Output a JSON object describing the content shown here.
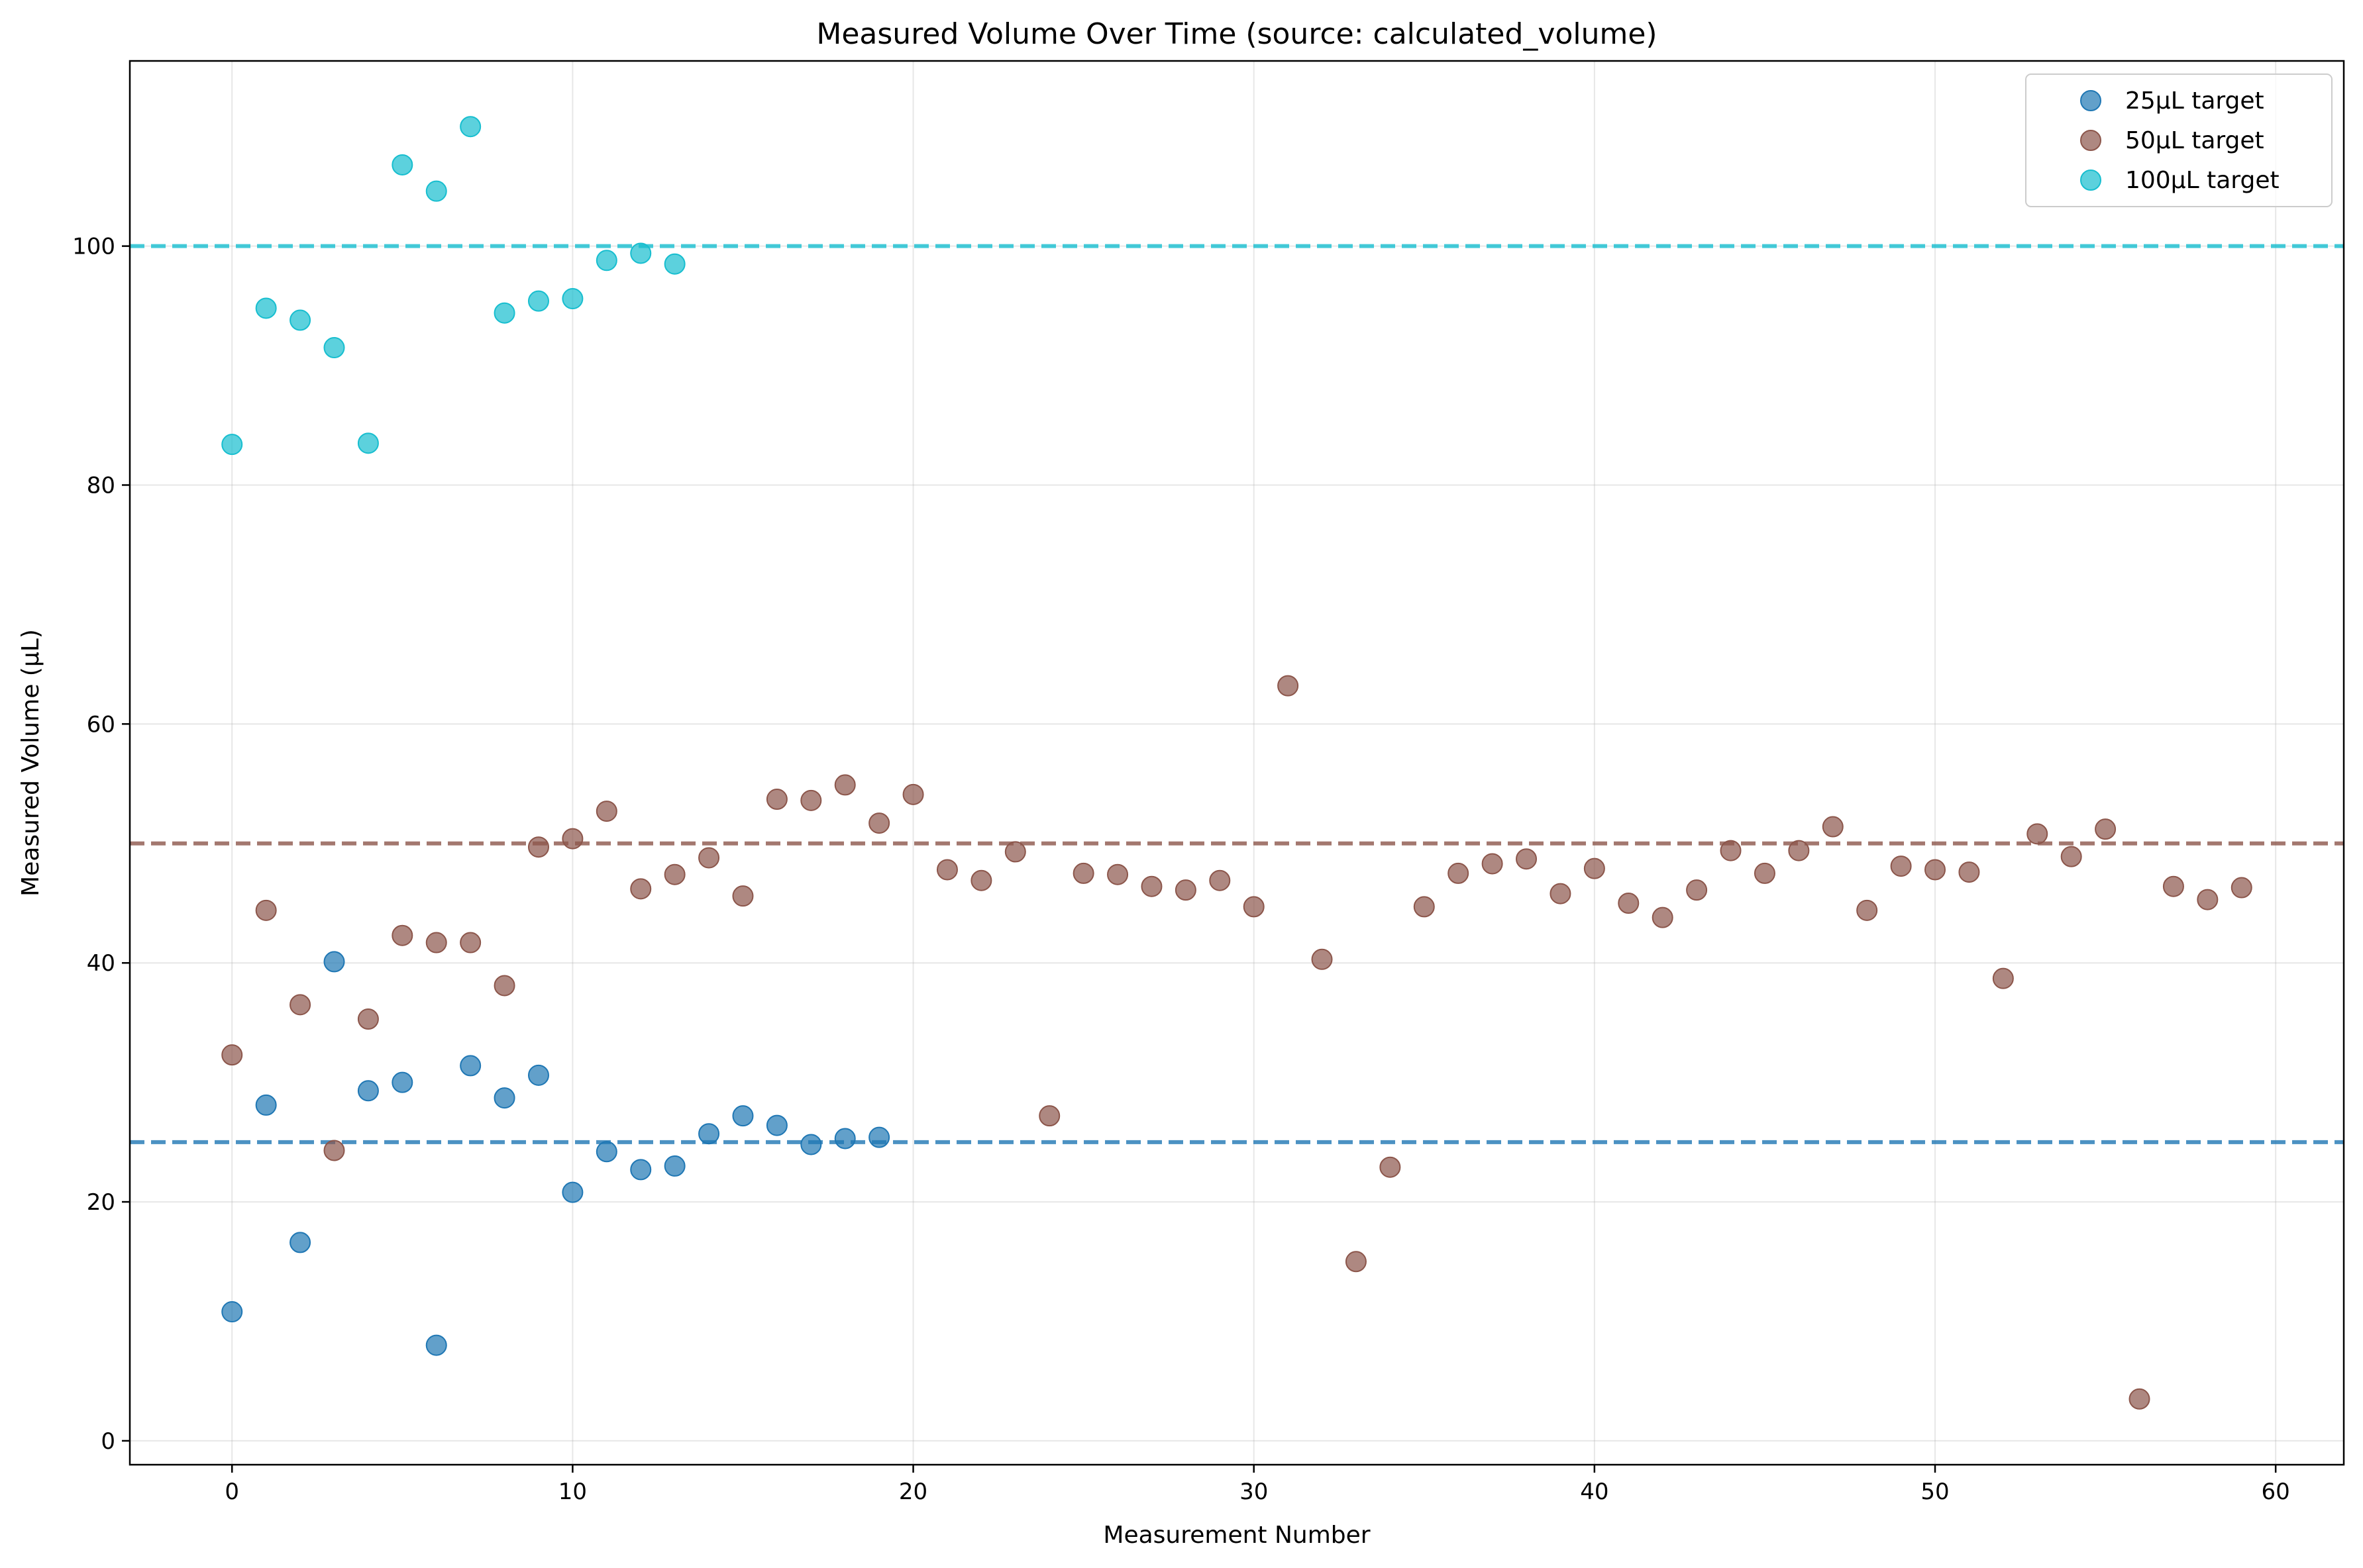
{
  "chart_data": {
    "type": "scatter",
    "title": "Measured Volume Over Time (source: calculated_volume)",
    "xlabel": "Measurement Number",
    "ylabel": "Measured Volume (µL)",
    "xlim": [
      -3,
      62
    ],
    "ylim": [
      -2,
      115.5
    ],
    "xticks": [
      0,
      10,
      20,
      30,
      40,
      50,
      60
    ],
    "yticks": [
      0,
      20,
      40,
      60,
      80,
      100
    ],
    "grid": true,
    "legend_position": "upper right",
    "series": [
      {
        "name": "25µL target",
        "color": "#1f77b4",
        "target": 25,
        "x": [
          0,
          1,
          2,
          3,
          4,
          5,
          6,
          7,
          8,
          9,
          10,
          11,
          12,
          13,
          14,
          15,
          16,
          17,
          18,
          19
        ],
        "y": [
          10.8,
          28.1,
          16.6,
          40.1,
          29.3,
          30.0,
          8.0,
          31.4,
          28.7,
          30.6,
          20.8,
          24.2,
          22.7,
          23.0,
          25.7,
          27.2,
          26.4,
          24.8,
          25.3,
          25.4
        ]
      },
      {
        "name": "50µL target",
        "color": "#8c564b",
        "target": 50,
        "x": [
          0,
          1,
          2,
          3,
          4,
          5,
          6,
          7,
          8,
          9,
          10,
          11,
          12,
          13,
          14,
          15,
          16,
          17,
          18,
          19,
          20,
          21,
          22,
          23,
          24,
          25,
          26,
          27,
          28,
          29,
          30,
          31,
          32,
          33,
          34,
          35,
          36,
          37,
          38,
          39,
          40,
          41,
          42,
          43,
          44,
          45,
          46,
          47,
          48,
          49,
          50,
          51,
          52,
          53,
          54,
          55,
          56,
          57,
          58,
          59
        ],
        "y": [
          32.3,
          44.4,
          36.5,
          24.3,
          35.3,
          42.3,
          41.7,
          41.7,
          38.1,
          49.7,
          50.4,
          52.7,
          46.2,
          47.4,
          48.8,
          45.6,
          53.7,
          53.6,
          54.9,
          51.7,
          54.1,
          47.8,
          46.9,
          49.3,
          27.2,
          47.5,
          47.4,
          46.4,
          46.1,
          46.9,
          44.7,
          63.2,
          40.3,
          15.0,
          22.9,
          44.7,
          47.5,
          48.3,
          48.7,
          45.8,
          47.9,
          45.0,
          43.8,
          46.1,
          49.4,
          47.5,
          49.4,
          51.4,
          44.4,
          48.1,
          47.8,
          47.6,
          38.7,
          50.8,
          48.9,
          51.2,
          3.5,
          46.4,
          45.3,
          46.3
        ]
      },
      {
        "name": "100µL target",
        "color": "#17becf",
        "target": 100,
        "x": [
          0,
          1,
          2,
          3,
          4,
          5,
          6,
          7,
          8,
          9,
          10,
          11,
          12,
          13
        ],
        "y": [
          83.4,
          94.8,
          93.8,
          91.5,
          83.5,
          106.8,
          104.6,
          110.0,
          94.4,
          95.4,
          95.6,
          98.8,
          99.4,
          98.5
        ]
      }
    ]
  }
}
